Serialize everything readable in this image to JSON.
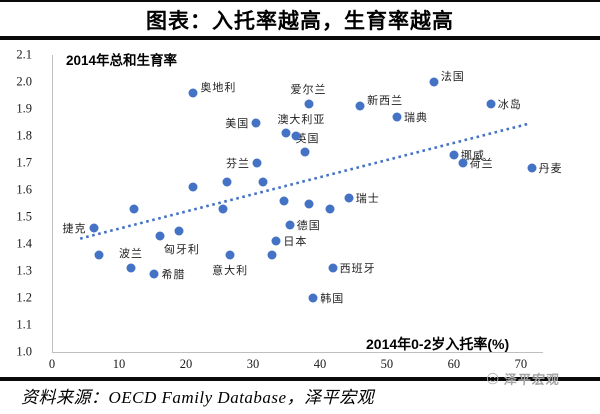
{
  "header": {
    "title": "图表：入托率越高，生育率越高"
  },
  "footer": {
    "source_text": "资料来源：OECD Family Database，泽平宏观",
    "watermark_icon": "smiley-face-logo",
    "watermark_text": "泽平宏观"
  },
  "colors": {
    "dot": "#4472c4",
    "trend": "#4472c4",
    "axis": "#bfbfbf",
    "rule": "#0a0a0a",
    "watermark": "#a6a6a6"
  },
  "chart_data": {
    "type": "scatter",
    "title": "图表：入托率越高，生育率越高",
    "y_axis_label": "2014年总和生育率",
    "x_axis_label": "2014年0-2岁入托率(%)",
    "xlim": [
      0,
      73.3
    ],
    "ylim": [
      1.0,
      2.1
    ],
    "x_ticks": [
      "0",
      "10",
      "20",
      "30",
      "40",
      "50",
      "60",
      "70"
    ],
    "x_tick_values": [
      0,
      10,
      20,
      30,
      40,
      50,
      60,
      70
    ],
    "y_ticks": [
      "1.0",
      "1.1",
      "1.2",
      "1.3",
      "1.4",
      "1.5",
      "1.6",
      "1.7",
      "1.8",
      "1.9",
      "2.0",
      "2.1"
    ],
    "y_tick_values": [
      1.0,
      1.1,
      1.2,
      1.3,
      1.4,
      1.5,
      1.6,
      1.7,
      1.8,
      1.9,
      2.0,
      2.1
    ],
    "grid": false,
    "legend": false,
    "trend_line": {
      "style": "dotted",
      "x1": 4.2,
      "y1": 1.42,
      "x2": 71.1,
      "y2": 1.845
    },
    "points": [
      {
        "label": "捷克",
        "x": 6.2,
        "y": 1.46,
        "labelPos": "left"
      },
      {
        "label": "波兰",
        "x": 11.8,
        "y": 1.31,
        "labelPos": "above"
      },
      {
        "label": "希腊",
        "x": 15.3,
        "y": 1.29,
        "labelPos": "right"
      },
      {
        "label": "匈牙利",
        "x": 16.1,
        "y": 1.43,
        "labelPos": "below-right"
      },
      {
        "label": "奥地利",
        "x": 21.1,
        "y": 1.96,
        "labelPos": "right-up"
      },
      {
        "label": "美国",
        "x": 30.5,
        "y": 1.85,
        "labelPos": "left"
      },
      {
        "label": "芬兰",
        "x": 30.6,
        "y": 1.7,
        "labelPos": "left"
      },
      {
        "label": "意大利",
        "x": 26.6,
        "y": 1.36,
        "labelPos": "below"
      },
      {
        "label": "澳大利亚",
        "x": 35.0,
        "y": 1.81,
        "labelPos": "above-right"
      },
      {
        "label": "英国",
        "x": 37.7,
        "y": 1.74,
        "labelPos": "above-right"
      },
      {
        "label": "爱尔兰",
        "x": 38.3,
        "y": 1.92,
        "labelPos": "above"
      },
      {
        "label": "德国",
        "x": 35.5,
        "y": 1.47,
        "labelPos": "right"
      },
      {
        "label": "日本",
        "x": 33.5,
        "y": 1.41,
        "labelPos": "right"
      },
      {
        "label": "西班牙",
        "x": 41.9,
        "y": 1.31,
        "labelPos": "right"
      },
      {
        "label": "韩国",
        "x": 39.0,
        "y": 1.2,
        "labelPos": "right"
      },
      {
        "label": "瑞士",
        "x": 44.3,
        "y": 1.57,
        "labelPos": "right"
      },
      {
        "label": "新西兰",
        "x": 46.0,
        "y": 1.91,
        "labelPos": "right-up"
      },
      {
        "label": "瑞典",
        "x": 51.5,
        "y": 1.87,
        "labelPos": "right"
      },
      {
        "label": "法国",
        "x": 57.0,
        "y": 2.0,
        "labelPos": "right-up"
      },
      {
        "label": "挪威",
        "x": 60.0,
        "y": 1.73,
        "labelPos": "right"
      },
      {
        "label": "荷兰",
        "x": 61.3,
        "y": 1.7,
        "labelPos": "right"
      },
      {
        "label": "冰岛",
        "x": 65.5,
        "y": 1.92,
        "labelPos": "right"
      },
      {
        "label": "丹麦",
        "x": 71.6,
        "y": 1.68,
        "labelPos": "right"
      },
      {
        "label": "",
        "x": 7.0,
        "y": 1.36
      },
      {
        "label": "",
        "x": 12.3,
        "y": 1.53
      },
      {
        "label": "",
        "x": 18.9,
        "y": 1.45
      },
      {
        "label": "",
        "x": 21.0,
        "y": 1.61
      },
      {
        "label": "",
        "x": 25.6,
        "y": 1.53
      },
      {
        "label": "",
        "x": 26.1,
        "y": 1.63
      },
      {
        "label": "",
        "x": 31.5,
        "y": 1.63
      },
      {
        "label": "",
        "x": 34.7,
        "y": 1.56
      },
      {
        "label": "",
        "x": 38.4,
        "y": 1.55
      },
      {
        "label": "",
        "x": 41.5,
        "y": 1.53
      },
      {
        "label": "",
        "x": 32.8,
        "y": 1.36
      },
      {
        "label": "",
        "x": 36.5,
        "y": 1.8
      }
    ]
  }
}
